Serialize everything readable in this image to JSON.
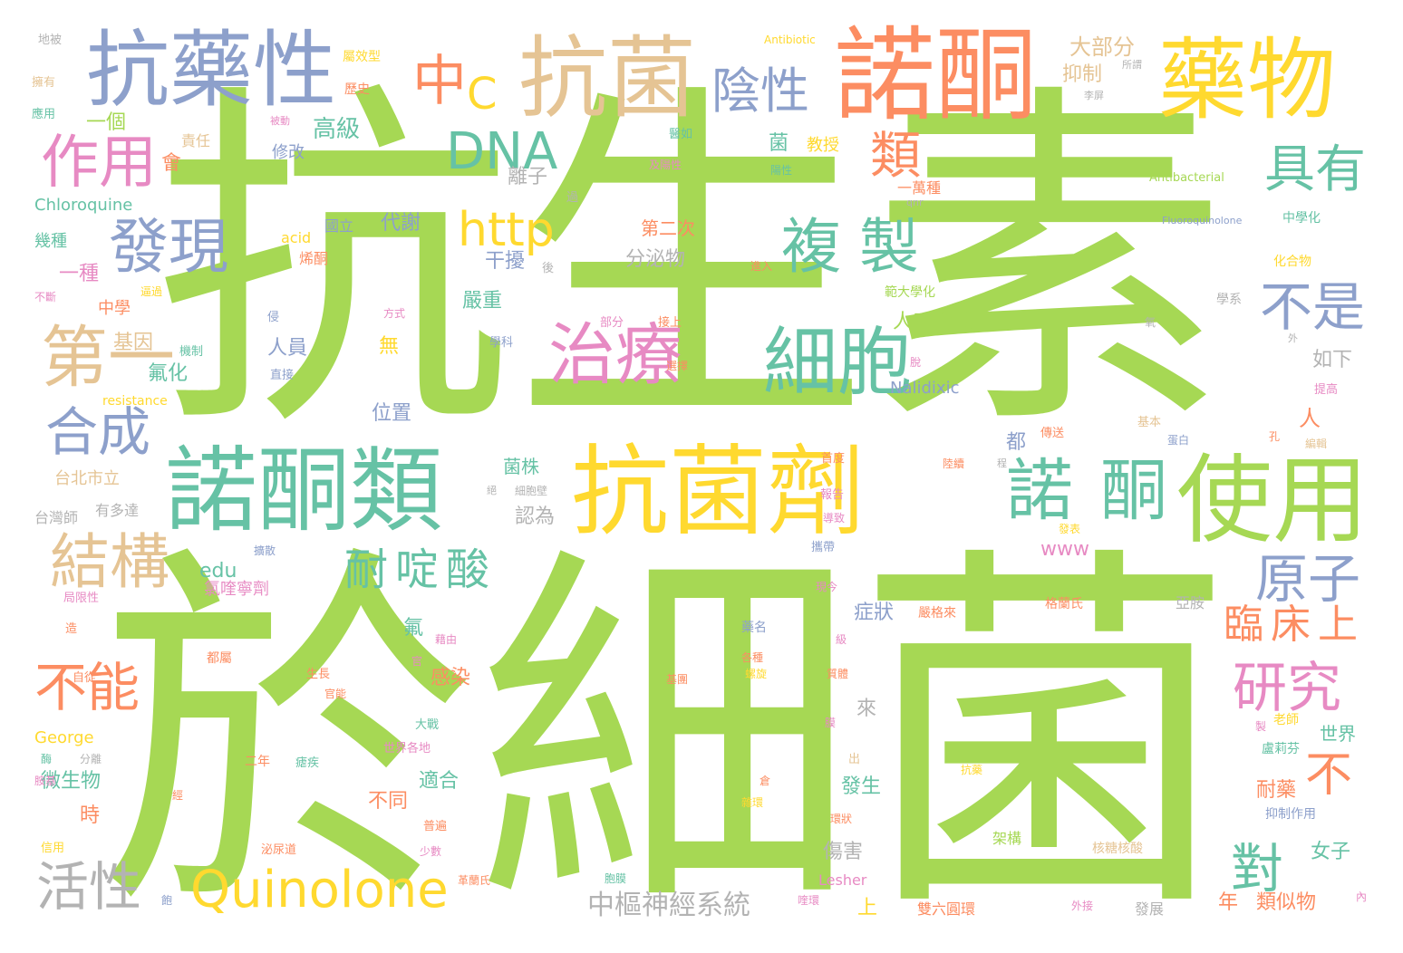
{
  "palette": {
    "green": "#a6d854",
    "yellow": "#ffd92f",
    "orange": "#fc8d62",
    "blue": "#8da0cb",
    "teal": "#66c2a5",
    "pink": "#e78ac3",
    "tan": "#e5c494",
    "gray": "#b3b3b3"
  },
  "words": [
    {
      "text": "抗生素",
      "color": "green"
    },
    {
      "text": "於細菌",
      "color": "green"
    },
    {
      "text": "抗藥性",
      "color": "blue"
    },
    {
      "text": "抗菌",
      "color": "tan"
    },
    {
      "text": "諾酮",
      "color": "orange"
    },
    {
      "text": "藥物",
      "color": "yellow"
    },
    {
      "text": "中",
      "color": "orange"
    },
    {
      "text": "C",
      "color": "yellow"
    },
    {
      "text": "陰性",
      "color": "blue"
    },
    {
      "text": "DNA",
      "color": "teal"
    },
    {
      "text": "作用",
      "color": "pink"
    },
    {
      "text": "具有",
      "color": "teal"
    },
    {
      "text": "類",
      "color": "orange"
    },
    {
      "text": "發現",
      "color": "blue"
    },
    {
      "text": "http",
      "color": "yellow"
    },
    {
      "text": "複製",
      "color": "teal"
    },
    {
      "text": "不是",
      "color": "blue"
    },
    {
      "text": "第一",
      "color": "tan"
    },
    {
      "text": "治療",
      "color": "pink"
    },
    {
      "text": "細胞",
      "color": "teal"
    },
    {
      "text": "合成",
      "color": "blue"
    },
    {
      "text": "諾酮類",
      "color": "teal"
    },
    {
      "text": "抗菌劑",
      "color": "yellow"
    },
    {
      "text": "諾酮",
      "color": "teal"
    },
    {
      "text": "使用",
      "color": "green"
    },
    {
      "text": "結構",
      "color": "tan"
    },
    {
      "text": "耐啶酸",
      "color": "teal"
    },
    {
      "text": "原子",
      "color": "blue"
    },
    {
      "text": "臨床上",
      "color": "orange"
    },
    {
      "text": "不",
      "color": "orange"
    },
    {
      "text": "對",
      "color": "teal"
    },
    {
      "text": "不能",
      "color": "orange"
    },
    {
      "text": "研究",
      "color": "pink"
    },
    {
      "text": "活性",
      "color": "gray"
    },
    {
      "text": "Quinolone",
      "color": "yellow"
    },
    {
      "text": "中樞神經系統",
      "color": "gray"
    },
    {
      "text": "大部分",
      "color": "tan"
    },
    {
      "text": "抑制",
      "color": "tan"
    },
    {
      "text": "高級",
      "color": "teal"
    },
    {
      "text": "一個",
      "color": "green"
    },
    {
      "text": "責任",
      "color": "tan"
    },
    {
      "text": "會",
      "color": "orange"
    },
    {
      "text": "修改",
      "color": "blue"
    },
    {
      "text": "菌",
      "color": "teal"
    },
    {
      "text": "教授",
      "color": "yellow"
    },
    {
      "text": "離子",
      "color": "gray"
    },
    {
      "text": "一萬種",
      "color": "orange"
    },
    {
      "text": "Chloroquine",
      "color": "teal"
    },
    {
      "text": "國立",
      "color": "blue"
    },
    {
      "text": "代謝",
      "color": "blue"
    },
    {
      "text": "第二次",
      "color": "orange"
    },
    {
      "text": "幾種",
      "color": "teal"
    },
    {
      "text": "acid",
      "color": "yellow"
    },
    {
      "text": "烯酮",
      "color": "orange"
    },
    {
      "text": "干擾",
      "color": "blue"
    },
    {
      "text": "分泌物",
      "color": "gray"
    },
    {
      "text": "一種",
      "color": "pink"
    },
    {
      "text": "中學",
      "color": "orange"
    },
    {
      "text": "嚴重",
      "color": "teal"
    },
    {
      "text": "人工合成",
      "color": "green"
    },
    {
      "text": "基因",
      "color": "tan"
    },
    {
      "text": "人員",
      "color": "blue"
    },
    {
      "text": "氟化",
      "color": "teal"
    },
    {
      "text": "無",
      "color": "yellow"
    },
    {
      "text": "如下",
      "color": "gray"
    },
    {
      "text": "Nalidixic",
      "color": "blue"
    },
    {
      "text": "resistance",
      "color": "yellow"
    },
    {
      "text": "位置",
      "color": "blue"
    },
    {
      "text": "人",
      "color": "orange"
    },
    {
      "text": "都",
      "color": "blue"
    },
    {
      "text": "台北市立",
      "color": "tan"
    },
    {
      "text": "菌株",
      "color": "teal"
    },
    {
      "text": "台灣師",
      "color": "gray"
    },
    {
      "text": "有多達",
      "color": "gray"
    },
    {
      "text": "認為",
      "color": "gray"
    },
    {
      "text": "www",
      "color": "pink"
    },
    {
      "text": "edu",
      "color": "teal"
    },
    {
      "text": "氯喹寧劑",
      "color": "pink"
    },
    {
      "text": "症狀",
      "color": "blue"
    },
    {
      "text": "氟",
      "color": "teal"
    },
    {
      "text": "感染",
      "color": "orange"
    },
    {
      "text": "來",
      "color": "gray"
    },
    {
      "text": "George",
      "color": "yellow"
    },
    {
      "text": "世界",
      "color": "teal"
    },
    {
      "text": "微生物",
      "color": "teal"
    },
    {
      "text": "適合",
      "color": "teal"
    },
    {
      "text": "發生",
      "color": "teal"
    },
    {
      "text": "耐藥",
      "color": "orange"
    },
    {
      "text": "時",
      "color": "orange"
    },
    {
      "text": "不同",
      "color": "orange"
    },
    {
      "text": "傷害",
      "color": "gray"
    },
    {
      "text": "女子",
      "color": "teal"
    },
    {
      "text": "年",
      "color": "orange"
    },
    {
      "text": "類似物",
      "color": "orange"
    },
    {
      "text": "上",
      "color": "yellow"
    },
    {
      "text": "Antibiotic",
      "color": "yellow"
    },
    {
      "text": "Antibacterial",
      "color": "green"
    },
    {
      "text": "Fluoroquinolone",
      "color": "blue"
    },
    {
      "text": "中學化",
      "color": "teal"
    },
    {
      "text": "化合物",
      "color": "yellow"
    },
    {
      "text": "學系",
      "color": "gray"
    },
    {
      "text": "提高",
      "color": "pink"
    },
    {
      "text": "Lesher",
      "color": "pink"
    },
    {
      "text": "架構",
      "color": "green"
    },
    {
      "text": "範大學化",
      "color": "green"
    },
    {
      "text": "格蘭氏",
      "color": "orange"
    },
    {
      "text": "亞胺",
      "color": "gray"
    },
    {
      "text": "嚴格來",
      "color": "orange"
    },
    {
      "text": "老師",
      "color": "yellow"
    },
    {
      "text": "盧莉芬",
      "color": "teal"
    },
    {
      "text": "抑制作用",
      "color": "blue"
    },
    {
      "text": "核糖核酸",
      "color": "tan"
    },
    {
      "text": "雙六圓環",
      "color": "orange"
    },
    {
      "text": "發展",
      "color": "gray"
    },
    {
      "text": "地被",
      "color": "gray"
    },
    {
      "text": "擁有",
      "color": "tan"
    },
    {
      "text": "應用",
      "color": "teal"
    },
    {
      "text": "屬效型",
      "color": "yellow"
    },
    {
      "text": "歷史",
      "color": "orange"
    },
    {
      "text": "所謂",
      "color": "gray"
    },
    {
      "text": "李屏",
      "color": "gray"
    },
    {
      "text": "被動",
      "color": "pink"
    },
    {
      "text": "醫如",
      "color": "teal"
    },
    {
      "text": "及陽性",
      "color": "pink"
    },
    {
      "text": "陽性",
      "color": "teal"
    },
    {
      "text": "過",
      "color": "gray"
    },
    {
      "text": "qnr",
      "color": "gray"
    },
    {
      "text": "後",
      "color": "gray"
    },
    {
      "text": "進入",
      "color": "orange"
    },
    {
      "text": "不斷",
      "color": "pink"
    },
    {
      "text": "逼過",
      "color": "yellow"
    },
    {
      "text": "侵",
      "color": "blue"
    },
    {
      "text": "方式",
      "color": "pink"
    },
    {
      "text": "部分",
      "color": "pink"
    },
    {
      "text": "接上",
      "color": "orange"
    },
    {
      "text": "氧",
      "color": "gray"
    },
    {
      "text": "外",
      "color": "gray"
    },
    {
      "text": "機制",
      "color": "teal"
    },
    {
      "text": "學科",
      "color": "blue"
    },
    {
      "text": "選擇",
      "color": "orange"
    },
    {
      "text": "脫",
      "color": "pink"
    },
    {
      "text": "直接",
      "color": "blue"
    },
    {
      "text": "基本",
      "color": "tan"
    },
    {
      "text": "孔",
      "color": "orange"
    },
    {
      "text": "傳送",
      "color": "orange"
    },
    {
      "text": "蛋白",
      "color": "blue"
    },
    {
      "text": "編輯",
      "color": "tan"
    },
    {
      "text": "首度",
      "color": "orange"
    },
    {
      "text": "陸續",
      "color": "orange"
    },
    {
      "text": "程",
      "color": "gray"
    },
    {
      "text": "絕",
      "color": "gray"
    },
    {
      "text": "細胞壁",
      "color": "gray"
    },
    {
      "text": "報告",
      "color": "pink"
    },
    {
      "text": "導致",
      "color": "pink"
    },
    {
      "text": "攜帶",
      "color": "blue"
    },
    {
      "text": "擴散",
      "color": "blue"
    },
    {
      "text": "發表",
      "color": "yellow"
    },
    {
      "text": "現今",
      "color": "pink"
    },
    {
      "text": "局限性",
      "color": "pink"
    },
    {
      "text": "藥名",
      "color": "blue"
    },
    {
      "text": "級",
      "color": "pink"
    },
    {
      "text": "造",
      "color": "orange"
    },
    {
      "text": "藉由",
      "color": "pink"
    },
    {
      "text": "官",
      "color": "pink"
    },
    {
      "text": "自從",
      "color": "orange"
    },
    {
      "text": "都屬",
      "color": "orange"
    },
    {
      "text": "生長",
      "color": "orange"
    },
    {
      "text": "官能",
      "color": "orange"
    },
    {
      "text": "各種",
      "color": "orange"
    },
    {
      "text": "螺旋",
      "color": "yellow"
    },
    {
      "text": "基團",
      "color": "orange"
    },
    {
      "text": "質體",
      "color": "orange"
    },
    {
      "text": "膜",
      "color": "pink"
    },
    {
      "text": "酶",
      "color": "teal"
    },
    {
      "text": "分離",
      "color": "gray"
    },
    {
      "text": "大戰",
      "color": "teal"
    },
    {
      "text": "世界各地",
      "color": "pink"
    },
    {
      "text": "二年",
      "color": "orange"
    },
    {
      "text": "瘧疾",
      "color": "teal"
    },
    {
      "text": "製",
      "color": "pink"
    },
    {
      "text": "出",
      "color": "tan"
    },
    {
      "text": "倉",
      "color": "orange"
    },
    {
      "text": "抗藥",
      "color": "yellow"
    },
    {
      "text": "胺基",
      "color": "pink"
    },
    {
      "text": "雜環",
      "color": "yellow"
    },
    {
      "text": "環狀",
      "color": "orange"
    },
    {
      "text": "經",
      "color": "orange"
    },
    {
      "text": "普遍",
      "color": "orange"
    },
    {
      "text": "信用",
      "color": "yellow"
    },
    {
      "text": "泌尿道",
      "color": "orange"
    },
    {
      "text": "少數",
      "color": "pink"
    },
    {
      "text": "革蘭氏",
      "color": "orange"
    },
    {
      "text": "胞膜",
      "color": "teal"
    },
    {
      "text": "飽",
      "color": "blue"
    },
    {
      "text": "喹環",
      "color": "pink"
    },
    {
      "text": "外接",
      "color": "pink"
    },
    {
      "text": "內",
      "color": "pink"
    }
  ]
}
